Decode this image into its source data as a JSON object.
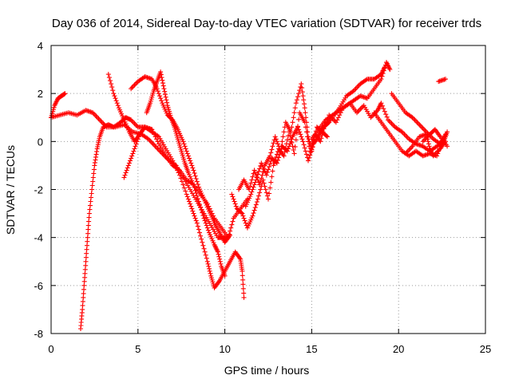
{
  "chart_data": {
    "type": "scatter",
    "title": "Day 036 of 2014, Sidereal Day-to-day VTEC variation (SDTVAR) for receiver trds",
    "xlabel": "GPS time / hours",
    "ylabel": "SDTVAR / TECUs",
    "xlim": [
      0,
      25
    ],
    "ylim": [
      -8,
      4
    ],
    "xticks": [
      0,
      5,
      10,
      15,
      20,
      25
    ],
    "yticks": [
      -8,
      -6,
      -4,
      -2,
      0,
      2,
      4
    ],
    "grid": true,
    "marker": "+",
    "series": [
      {
        "name": "SDTVAR trds",
        "color": "#ff0000",
        "tracks": [
          [
            [
              0.0,
              1.0
            ],
            [
              0.2,
              1.5
            ],
            [
              0.4,
              1.8
            ],
            [
              0.6,
              1.9
            ],
            [
              0.8,
              2.0
            ]
          ],
          [
            [
              0.0,
              1.0
            ],
            [
              0.5,
              1.1
            ],
            [
              1.0,
              1.2
            ],
            [
              1.5,
              1.1
            ],
            [
              2.0,
              1.3
            ],
            [
              2.4,
              1.2
            ],
            [
              2.8,
              0.9
            ],
            [
              3.2,
              0.6
            ],
            [
              3.7,
              0.6
            ],
            [
              4.2,
              0.7
            ],
            [
              4.7,
              0.4
            ],
            [
              5.2,
              0.3
            ],
            [
              5.6,
              0.1
            ],
            [
              6.0,
              -0.2
            ],
            [
              6.4,
              -0.5
            ],
            [
              6.8,
              -0.8
            ],
            [
              7.2,
              -1.0
            ],
            [
              7.6,
              -1.5
            ],
            [
              8.0,
              -2.0
            ],
            [
              8.4,
              -2.5
            ],
            [
              8.8,
              -3.0
            ],
            [
              9.2,
              -3.5
            ],
            [
              9.6,
              -4.0
            ],
            [
              9.9,
              -4.0
            ],
            [
              10.2,
              -4.0
            ],
            [
              10.5,
              -3.2
            ],
            [
              10.9,
              -2.8
            ],
            [
              11.3,
              -2.4
            ]
          ],
          [
            [
              1.7,
              -7.8
            ],
            [
              1.8,
              -7.0
            ],
            [
              1.9,
              -6.0
            ],
            [
              2.0,
              -5.0
            ],
            [
              2.1,
              -4.0
            ],
            [
              2.2,
              -3.0
            ],
            [
              2.35,
              -2.0
            ],
            [
              2.5,
              -1.0
            ],
            [
              2.65,
              -0.3
            ],
            [
              2.8,
              0.2
            ],
            [
              3.0,
              0.6
            ],
            [
              3.3,
              0.7
            ],
            [
              3.6,
              0.6
            ],
            [
              4.0,
              0.8
            ],
            [
              4.3,
              1.0
            ],
            [
              4.6,
              0.9
            ],
            [
              5.0,
              0.6
            ],
            [
              5.4,
              0.6
            ],
            [
              5.8,
              0.5
            ]
          ],
          [
            [
              4.2,
              -1.5
            ],
            [
              4.5,
              -0.9
            ],
            [
              4.8,
              -0.3
            ],
            [
              5.1,
              0.3
            ],
            [
              5.4,
              0.6
            ],
            [
              5.8,
              0.4
            ],
            [
              6.2,
              0.2
            ],
            [
              6.6,
              -0.3
            ],
            [
              7.0,
              -0.8
            ],
            [
              7.4,
              -1.4
            ],
            [
              7.8,
              -2.2
            ],
            [
              8.1,
              -2.8
            ],
            [
              8.4,
              -3.4
            ],
            [
              8.7,
              -4.2
            ],
            [
              9.0,
              -5.0
            ],
            [
              9.2,
              -5.6
            ],
            [
              9.4,
              -6.1
            ],
            [
              9.7,
              -5.8
            ],
            [
              10.0,
              -5.4
            ],
            [
              10.3,
              -5.0
            ],
            [
              10.6,
              -4.6
            ],
            [
              10.9,
              -4.9
            ],
            [
              11.0,
              -5.4
            ],
            [
              11.1,
              -6.5
            ]
          ],
          [
            [
              3.3,
              2.8
            ],
            [
              3.6,
              2.0
            ],
            [
              3.9,
              1.4
            ],
            [
              4.2,
              0.9
            ],
            [
              4.5,
              0.4
            ],
            [
              4.8,
              0.0
            ],
            [
              5.1,
              0.3
            ],
            [
              5.4,
              0.6
            ],
            [
              5.8,
              0.5
            ],
            [
              6.2,
              -0.1
            ],
            [
              6.6,
              -0.6
            ],
            [
              7.0,
              -1.0
            ],
            [
              7.4,
              -1.2
            ],
            [
              7.8,
              -1.6
            ],
            [
              8.2,
              -1.8
            ],
            [
              8.6,
              -2.2
            ],
            [
              9.0,
              -2.6
            ],
            [
              9.4,
              -3.2
            ],
            [
              9.8,
              -3.6
            ],
            [
              10.2,
              -4.0
            ]
          ],
          [
            [
              4.6,
              2.2
            ],
            [
              5.0,
              2.5
            ],
            [
              5.4,
              2.7
            ],
            [
              5.8,
              2.6
            ],
            [
              6.1,
              2.2
            ],
            [
              6.4,
              1.6
            ],
            [
              6.7,
              1.1
            ],
            [
              7.0,
              0.9
            ],
            [
              7.3,
              0.5
            ],
            [
              7.6,
              0.0
            ],
            [
              7.9,
              -0.6
            ],
            [
              8.2,
              -1.2
            ],
            [
              8.5,
              -1.9
            ],
            [
              8.8,
              -2.4
            ],
            [
              9.1,
              -2.9
            ],
            [
              9.4,
              -3.4
            ],
            [
              9.7,
              -3.8
            ],
            [
              10.0,
              -4.2
            ],
            [
              10.3,
              -3.9
            ]
          ],
          [
            [
              5.5,
              1.2
            ],
            [
              5.7,
              1.6
            ],
            [
              5.9,
              2.1
            ],
            [
              6.1,
              2.5
            ],
            [
              6.3,
              2.9
            ],
            [
              6.5,
              2.2
            ],
            [
              6.7,
              1.5
            ],
            [
              6.9,
              1.0
            ],
            [
              7.1,
              0.6
            ],
            [
              7.3,
              0.1
            ],
            [
              7.5,
              -0.4
            ],
            [
              7.7,
              -0.9
            ],
            [
              7.9,
              -1.3
            ],
            [
              8.2,
              -1.8
            ],
            [
              8.5,
              -2.5
            ],
            [
              8.8,
              -3.2
            ],
            [
              9.1,
              -3.8
            ],
            [
              9.4,
              -4.3
            ],
            [
              9.6,
              -4.6
            ],
            [
              9.8,
              -5.2
            ],
            [
              10.0,
              -5.6
            ]
          ],
          [
            [
              10.4,
              -2.2
            ],
            [
              10.7,
              -2.8
            ],
            [
              11.0,
              -3.0
            ],
            [
              11.3,
              -3.6
            ],
            [
              11.6,
              -3.1
            ],
            [
              11.9,
              -2.4
            ],
            [
              12.2,
              -1.6
            ],
            [
              12.5,
              -2.4
            ],
            [
              12.8,
              -1.0
            ],
            [
              13.1,
              -0.3
            ],
            [
              13.4,
              -0.6
            ],
            [
              13.7,
              0.4
            ],
            [
              14.0,
              -0.5
            ],
            [
              14.3,
              1.2
            ],
            [
              14.6,
              0.8
            ],
            [
              14.9,
              -0.4
            ],
            [
              15.2,
              0.3
            ],
            [
              15.5,
              0.0
            ],
            [
              15.8,
              0.8
            ]
          ],
          [
            [
              10.8,
              -2.0
            ],
            [
              11.1,
              -1.6
            ],
            [
              11.4,
              -2.0
            ],
            [
              11.7,
              -1.2
            ],
            [
              12.0,
              -1.8
            ],
            [
              12.3,
              -1.0
            ],
            [
              12.6,
              -0.6
            ],
            [
              12.9,
              0.2
            ],
            [
              13.2,
              -0.4
            ],
            [
              13.5,
              0.8
            ],
            [
              13.8,
              0.4
            ],
            [
              14.1,
              1.6
            ],
            [
              14.4,
              2.4
            ],
            [
              14.6,
              1.4
            ],
            [
              14.8,
              0.2
            ],
            [
              15.0,
              -0.4
            ],
            [
              15.3,
              0.6
            ],
            [
              15.6,
              0.4
            ],
            [
              15.9,
              0.2
            ]
          ],
          [
            [
              11.2,
              -2.7
            ],
            [
              11.5,
              -2.2
            ],
            [
              11.8,
              -1.6
            ],
            [
              12.1,
              -0.9
            ],
            [
              12.4,
              -1.4
            ],
            [
              12.7,
              -0.7
            ],
            [
              13.0,
              -0.9
            ],
            [
              13.3,
              -0.2
            ],
            [
              13.6,
              -0.4
            ],
            [
              13.9,
              0.2
            ],
            [
              14.2,
              0.6
            ],
            [
              14.5,
              0.0
            ],
            [
              14.8,
              -0.8
            ],
            [
              15.1,
              -0.1
            ],
            [
              15.4,
              0.2
            ],
            [
              15.7,
              0.6
            ],
            [
              16.0,
              0.8
            ]
          ],
          [
            [
              15.0,
              0.1
            ],
            [
              15.4,
              0.5
            ],
            [
              15.8,
              0.9
            ],
            [
              16.2,
              1.1
            ],
            [
              16.6,
              1.3
            ],
            [
              17.0,
              1.5
            ],
            [
              17.4,
              1.7
            ],
            [
              17.8,
              1.9
            ],
            [
              18.2,
              1.8
            ],
            [
              18.6,
              2.2
            ],
            [
              19.0,
              2.6
            ],
            [
              19.3,
              3.3
            ],
            [
              19.5,
              3.0
            ]
          ],
          [
            [
              15.4,
              0.3
            ],
            [
              15.8,
              0.7
            ],
            [
              16.2,
              1.0
            ],
            [
              16.6,
              1.4
            ],
            [
              17.0,
              1.9
            ],
            [
              17.4,
              2.1
            ],
            [
              17.8,
              2.4
            ],
            [
              18.2,
              2.6
            ],
            [
              18.6,
              2.6
            ],
            [
              19.0,
              2.8
            ],
            [
              19.2,
              3.1
            ]
          ],
          [
            [
              16.0,
              1.1
            ],
            [
              16.4,
              0.8
            ],
            [
              16.8,
              1.4
            ],
            [
              17.2,
              1.6
            ],
            [
              17.6,
              1.2
            ],
            [
              18.0,
              1.5
            ],
            [
              18.4,
              1.0
            ],
            [
              18.8,
              1.3
            ],
            [
              19.0,
              1.6
            ],
            [
              19.4,
              0.9
            ],
            [
              19.8,
              0.6
            ],
            [
              20.2,
              0.4
            ],
            [
              20.6,
              0.1
            ],
            [
              21.0,
              -0.1
            ],
            [
              21.4,
              -0.2
            ],
            [
              21.8,
              -0.4
            ],
            [
              22.2,
              -0.2
            ],
            [
              22.6,
              0.0
            ],
            [
              22.8,
              0.4
            ]
          ],
          [
            [
              19.6,
              2.0
            ],
            [
              20.0,
              1.6
            ],
            [
              20.4,
              1.2
            ],
            [
              20.8,
              1.0
            ],
            [
              21.2,
              0.7
            ],
            [
              21.6,
              0.4
            ],
            [
              22.0,
              0.1
            ],
            [
              22.4,
              -0.1
            ],
            [
              22.7,
              0.3
            ]
          ],
          [
            [
              18.6,
              1.2
            ],
            [
              19.0,
              0.8
            ],
            [
              19.4,
              0.4
            ],
            [
              19.8,
              0.0
            ],
            [
              20.2,
              -0.4
            ],
            [
              20.6,
              -0.6
            ],
            [
              21.0,
              -0.4
            ],
            [
              21.4,
              -0.6
            ],
            [
              21.8,
              -0.5
            ],
            [
              22.2,
              -0.6
            ],
            [
              22.5,
              0.0
            ]
          ],
          [
            [
              20.4,
              -0.5
            ],
            [
              20.8,
              -0.2
            ],
            [
              21.2,
              0.2
            ],
            [
              21.6,
              0.3
            ],
            [
              21.8,
              -0.3
            ],
            [
              22.0,
              -0.6
            ],
            [
              22.4,
              -0.3
            ],
            [
              22.7,
              0.0
            ]
          ],
          [
            [
              21.4,
              0.0
            ],
            [
              21.8,
              0.3
            ],
            [
              22.1,
              0.5
            ],
            [
              22.4,
              0.2
            ],
            [
              22.8,
              -0.2
            ]
          ],
          [
            [
              22.3,
              2.5
            ],
            [
              22.7,
              2.6
            ]
          ]
        ]
      }
    ]
  }
}
